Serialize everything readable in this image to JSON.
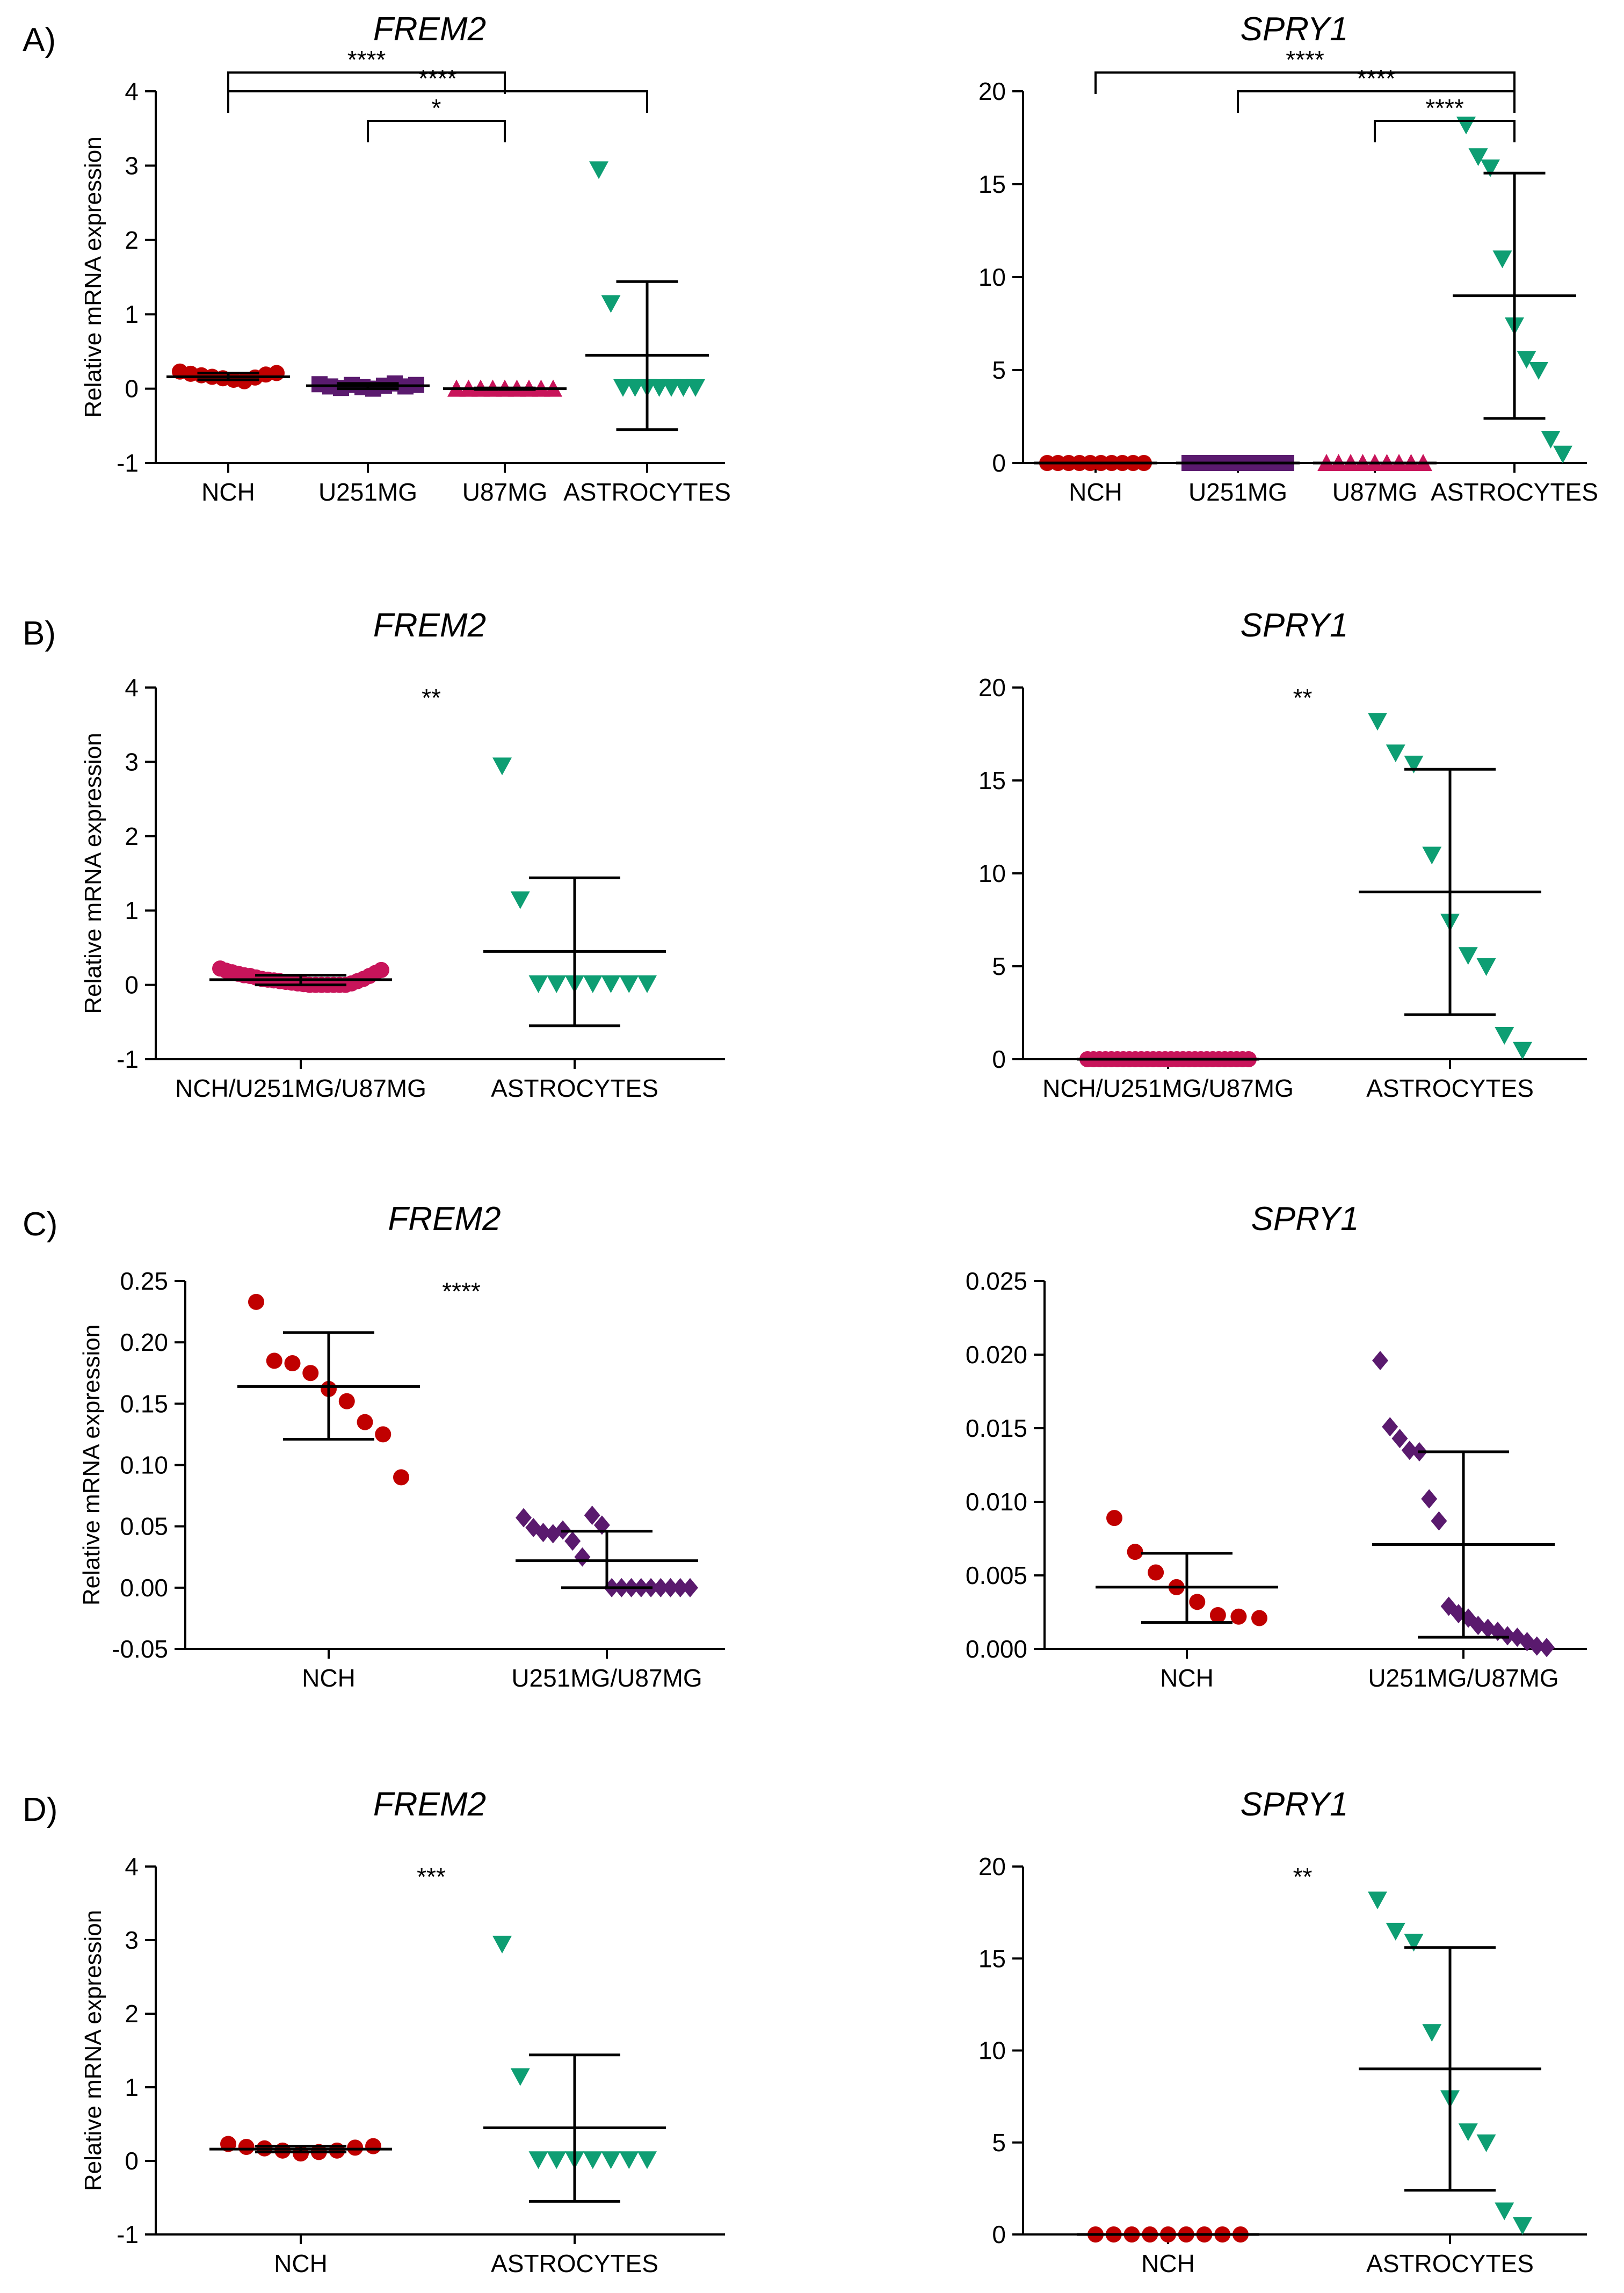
{
  "figure": {
    "panel_labels": [
      "A)",
      "B)",
      "C)",
      "D)"
    ],
    "y_axis_label": "Relative mRNA expression"
  },
  "colors": {
    "nch": "#c00000",
    "u251mg": "#5a1a6e",
    "u87mg": "#c8145a",
    "astrocytes": "#0e9e73",
    "axis": "#000000"
  },
  "chart_data": [
    {
      "id": "A-frem2",
      "panel": "A",
      "type": "scatter",
      "title": "FREM2",
      "ylabel": "Relative mRNA expression",
      "ylim": [
        -1,
        4
      ],
      "yticks": [
        -1,
        0,
        1,
        2,
        3,
        4
      ],
      "categories": [
        "NCH",
        "U251MG",
        "U87MG",
        "ASTROCYTES"
      ],
      "series": [
        {
          "name": "NCH",
          "marker": "circle",
          "color": "#c00000",
          "mean": 0.16,
          "sd_low": 0.12,
          "sd_high": 0.21,
          "values": [
            0.23,
            0.2,
            0.18,
            0.16,
            0.14,
            0.12,
            0.1,
            0.15,
            0.19,
            0.21
          ]
        },
        {
          "name": "U251MG",
          "marker": "square",
          "color": "#5a1a6e",
          "mean": 0.04,
          "sd_low": 0.0,
          "sd_high": 0.07,
          "values": [
            0.06,
            0.03,
            0.01,
            0.05,
            0.02,
            0.0,
            0.04,
            0.07,
            0.03,
            0.05
          ]
        },
        {
          "name": "U87MG",
          "marker": "triangle-up",
          "color": "#c8145a",
          "mean": 0.0,
          "sd_low": -0.01,
          "sd_high": 0.01,
          "values": [
            0.0,
            0.0,
            0.0,
            0.0,
            0.0,
            0.0,
            0.0,
            0.0,
            0.0
          ]
        },
        {
          "name": "ASTROCYTES",
          "marker": "triangle-down",
          "color": "#0e9e73",
          "mean": 0.45,
          "sd_low": -0.55,
          "sd_high": 1.44,
          "values": [
            2.95,
            1.15,
            0.02,
            0.02,
            0.02,
            0.02,
            0.02,
            0.02,
            0.02
          ]
        }
      ],
      "significance": [
        {
          "from": 0,
          "to": 2,
          "label": "****"
        },
        {
          "from": 0,
          "to": 3,
          "label": "****"
        },
        {
          "from": 1,
          "to": 2,
          "label": "*"
        }
      ]
    },
    {
      "id": "A-spry1",
      "panel": "A",
      "type": "scatter",
      "title": "SPRY1",
      "ylabel": "",
      "ylim": [
        0,
        20
      ],
      "yticks": [
        0,
        5,
        10,
        15,
        20
      ],
      "categories": [
        "NCH",
        "U251MG",
        "U87MG",
        "ASTROCYTES"
      ],
      "series": [
        {
          "name": "NCH",
          "marker": "circle",
          "color": "#c00000",
          "mean": 0.0,
          "sd_low": 0.0,
          "sd_high": 0.0,
          "values": [
            0.0,
            0.0,
            0.0,
            0.0,
            0.0,
            0.0,
            0.0,
            0.0,
            0.0,
            0.0
          ]
        },
        {
          "name": "U251MG",
          "marker": "square",
          "color": "#5a1a6e",
          "mean": 0.0,
          "sd_low": 0.0,
          "sd_high": 0.0,
          "values": [
            0.0,
            0.0,
            0.0,
            0.0,
            0.0,
            0.0,
            0.0,
            0.0,
            0.0
          ]
        },
        {
          "name": "U87MG",
          "marker": "triangle-up",
          "color": "#c8145a",
          "mean": 0.0,
          "sd_low": 0.0,
          "sd_high": 0.0,
          "values": [
            0.0,
            0.0,
            0.0,
            0.0,
            0.0,
            0.0,
            0.0,
            0.0,
            0.0
          ]
        },
        {
          "name": "ASTROCYTES",
          "marker": "triangle-down",
          "color": "#0e9e73",
          "mean": 9.0,
          "sd_low": 2.4,
          "sd_high": 15.6,
          "values": [
            18.2,
            16.5,
            15.9,
            11.0,
            7.4,
            5.6,
            5.0,
            1.3,
            0.5
          ]
        }
      ],
      "significance": [
        {
          "from": 0,
          "to": 3,
          "label": "****"
        },
        {
          "from": 1,
          "to": 3,
          "label": "****"
        },
        {
          "from": 2,
          "to": 3,
          "label": "****"
        }
      ]
    },
    {
      "id": "B-frem2",
      "panel": "B",
      "type": "scatter",
      "title": "FREM2",
      "ylabel": "Relative mRNA expression",
      "ylim": [
        -1,
        4
      ],
      "yticks": [
        -1,
        0,
        1,
        2,
        3,
        4
      ],
      "categories": [
        "NCH/U251MG/U87MG",
        "ASTROCYTES"
      ],
      "overall_significance": "**",
      "series": [
        {
          "name": "NCH/U251MG/U87MG",
          "marker": "circle",
          "color": "#c8145a",
          "mean": 0.07,
          "sd_low": 0.0,
          "sd_high": 0.13,
          "values": [
            0.22,
            0.19,
            0.17,
            0.15,
            0.13,
            0.12,
            0.1,
            0.08,
            0.07,
            0.06,
            0.05,
            0.04,
            0.03,
            0.02,
            0.01,
            0.0,
            0.0,
            0.0,
            0.0,
            0.0,
            0.0,
            0.0,
            0.02,
            0.05,
            0.08,
            0.12,
            0.16,
            0.2
          ]
        },
        {
          "name": "ASTROCYTES",
          "marker": "triangle-down",
          "color": "#0e9e73",
          "mean": 0.45,
          "sd_low": -0.55,
          "sd_high": 1.44,
          "values": [
            2.95,
            1.15,
            0.02,
            0.02,
            0.02,
            0.02,
            0.02,
            0.02,
            0.02
          ]
        }
      ]
    },
    {
      "id": "B-spry1",
      "panel": "B",
      "type": "scatter",
      "title": "SPRY1",
      "ylabel": "",
      "ylim": [
        0,
        20
      ],
      "yticks": [
        0,
        5,
        10,
        15,
        20
      ],
      "categories": [
        "NCH/U251MG/U87MG",
        "ASTROCYTES"
      ],
      "overall_significance": "**",
      "series": [
        {
          "name": "NCH/U251MG/U87MG",
          "marker": "circle",
          "color": "#c8145a",
          "mean": 0.0,
          "sd_low": 0.0,
          "sd_high": 0.0,
          "values": [
            0.0,
            0.0,
            0.0,
            0.0,
            0.0,
            0.0,
            0.0,
            0.0,
            0.0,
            0.0,
            0.0,
            0.0,
            0.0,
            0.0,
            0.0,
            0.0,
            0.0,
            0.0,
            0.0,
            0.0,
            0.0,
            0.0,
            0.0,
            0.0,
            0.0,
            0.0,
            0.0,
            0.0
          ]
        },
        {
          "name": "ASTROCYTES",
          "marker": "triangle-down",
          "color": "#0e9e73",
          "mean": 9.0,
          "sd_low": 2.4,
          "sd_high": 15.6,
          "values": [
            18.2,
            16.5,
            15.9,
            11.0,
            7.4,
            5.6,
            5.0,
            1.3,
            0.5
          ]
        }
      ]
    },
    {
      "id": "C-frem2",
      "panel": "C",
      "type": "scatter",
      "title": "FREM2",
      "ylabel": "Relative mRNA expression",
      "ylim": [
        -0.05,
        0.25
      ],
      "yticks": [
        -0.05,
        0.0,
        0.05,
        0.1,
        0.15,
        0.2,
        0.25
      ],
      "tick_decimals": 2,
      "categories": [
        "NCH",
        "U251MG/U87MG"
      ],
      "overall_significance": "****",
      "series": [
        {
          "name": "NCH",
          "marker": "circle",
          "color": "#c00000",
          "mean": 0.164,
          "sd_low": 0.121,
          "sd_high": 0.208,
          "values": [
            0.233,
            0.185,
            0.183,
            0.175,
            0.162,
            0.152,
            0.135,
            0.125,
            0.09
          ]
        },
        {
          "name": "U251MG/U87MG",
          "marker": "diamond",
          "color": "#5a1a6e",
          "mean": 0.022,
          "sd_low": 0.0,
          "sd_high": 0.046,
          "values": [
            0.057,
            0.049,
            0.045,
            0.044,
            0.047,
            0.038,
            0.025,
            0.059,
            0.051,
            0.0,
            0.0,
            0.0,
            0.0,
            0.0,
            0.0,
            0.0,
            0.0,
            0.0
          ]
        }
      ]
    },
    {
      "id": "C-spry1",
      "panel": "C",
      "type": "scatter",
      "title": "SPRY1",
      "ylabel": "",
      "ylim": [
        0,
        0.025
      ],
      "yticks": [
        0.0,
        0.005,
        0.01,
        0.015,
        0.02,
        0.025
      ],
      "tick_decimals": 3,
      "categories": [
        "NCH",
        "U251MG/U87MG"
      ],
      "series": [
        {
          "name": "NCH",
          "marker": "circle",
          "color": "#c00000",
          "mean": 0.0042,
          "sd_low": 0.0018,
          "sd_high": 0.0065,
          "values": [
            0.0089,
            0.0066,
            0.0052,
            0.0042,
            0.0032,
            0.0023,
            0.0022,
            0.0021
          ]
        },
        {
          "name": "U251MG/U87MG",
          "marker": "diamond",
          "color": "#5a1a6e",
          "mean": 0.0071,
          "sd_low": 0.0008,
          "sd_high": 0.0134,
          "values": [
            0.0196,
            0.0151,
            0.0143,
            0.0135,
            0.0134,
            0.0102,
            0.0087,
            0.0029,
            0.0024,
            0.0021,
            0.0016,
            0.0014,
            0.0012,
            0.0009,
            0.0008,
            0.0005,
            0.0002,
            0.0001
          ]
        }
      ]
    },
    {
      "id": "D-frem2",
      "panel": "D",
      "type": "scatter",
      "title": "FREM2",
      "ylabel": "Relative mRNA expression",
      "ylim": [
        -1,
        4
      ],
      "yticks": [
        -1,
        0,
        1,
        2,
        3,
        4
      ],
      "categories": [
        "NCH",
        "ASTROCYTES"
      ],
      "overall_significance": "***",
      "series": [
        {
          "name": "NCH",
          "marker": "circle",
          "color": "#c00000",
          "mean": 0.16,
          "sd_low": 0.12,
          "sd_high": 0.2,
          "values": [
            0.23,
            0.19,
            0.17,
            0.14,
            0.1,
            0.12,
            0.14,
            0.18,
            0.2
          ]
        },
        {
          "name": "ASTROCYTES",
          "marker": "triangle-down",
          "color": "#0e9e73",
          "mean": 0.45,
          "sd_low": -0.55,
          "sd_high": 1.44,
          "values": [
            2.95,
            1.15,
            0.02,
            0.02,
            0.02,
            0.02,
            0.02,
            0.02,
            0.02
          ]
        }
      ]
    },
    {
      "id": "D-spry1",
      "panel": "D",
      "type": "scatter",
      "title": "SPRY1",
      "ylabel": "",
      "ylim": [
        0,
        20
      ],
      "yticks": [
        0,
        5,
        10,
        15,
        20
      ],
      "categories": [
        "NCH",
        "ASTROCYTES"
      ],
      "overall_significance": "**",
      "series": [
        {
          "name": "NCH",
          "marker": "circle",
          "color": "#c00000",
          "mean": 0.0,
          "sd_low": 0.0,
          "sd_high": 0.0,
          "values": [
            0.0,
            0.0,
            0.0,
            0.0,
            0.0,
            0.0,
            0.0,
            0.0,
            0.0
          ]
        },
        {
          "name": "ASTROCYTES",
          "marker": "triangle-down",
          "color": "#0e9e73",
          "mean": 9.0,
          "sd_low": 2.4,
          "sd_high": 15.6,
          "values": [
            18.2,
            16.5,
            15.9,
            11.0,
            7.4,
            5.6,
            5.0,
            1.3,
            0.5
          ]
        }
      ]
    }
  ]
}
